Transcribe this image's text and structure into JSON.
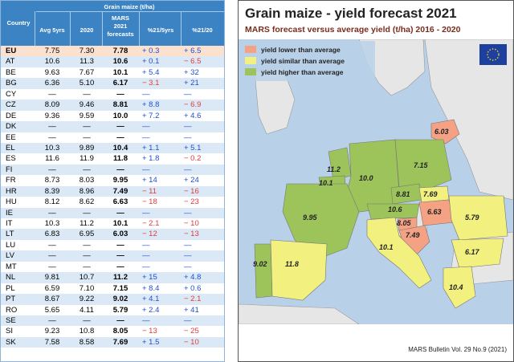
{
  "table": {
    "header": {
      "country": "Country",
      "group": "Grain maize (t/ha)",
      "avg": "Avg 5yrs",
      "y2020": "2020",
      "mars_line1": "MARS",
      "mars_line2": "2021",
      "mars_line3": "forecasts",
      "d5": "%21/5yrs",
      "d20": "%21/20"
    },
    "rows": [
      {
        "country": "EU",
        "avg": "7.75",
        "y2020": "7.30",
        "mars": "7.78",
        "d5": "+ 0.3",
        "d20": "+ 6.5"
      },
      {
        "country": "AT",
        "avg": "10.6",
        "y2020": "11.3",
        "mars": "10.6",
        "d5": "+ 0.1",
        "d20": "− 6.5"
      },
      {
        "country": "BE",
        "avg": "9.63",
        "y2020": "7.67",
        "mars": "10.1",
        "d5": "+ 5.4",
        "d20": "+ 32"
      },
      {
        "country": "BG",
        "avg": "6.36",
        "y2020": "5.10",
        "mars": "6.17",
        "d5": "− 3.1",
        "d20": "+ 21"
      },
      {
        "country": "CY",
        "avg": "—",
        "y2020": "—",
        "mars": "—",
        "d5": "—",
        "d20": "—"
      },
      {
        "country": "CZ",
        "avg": "8.09",
        "y2020": "9.46",
        "mars": "8.81",
        "d5": "+ 8.8",
        "d20": "− 6.9"
      },
      {
        "country": "DE",
        "avg": "9.36",
        "y2020": "9.59",
        "mars": "10.0",
        "d5": "+ 7.2",
        "d20": "+ 4.6"
      },
      {
        "country": "DK",
        "avg": "—",
        "y2020": "—",
        "mars": "—",
        "d5": "—",
        "d20": "—"
      },
      {
        "country": "EE",
        "avg": "—",
        "y2020": "—",
        "mars": "—",
        "d5": "—",
        "d20": "—"
      },
      {
        "country": "EL",
        "avg": "10.3",
        "y2020": "9.89",
        "mars": "10.4",
        "d5": "+ 1.1",
        "d20": "+ 5.1"
      },
      {
        "country": "ES",
        "avg": "11.6",
        "y2020": "11.9",
        "mars": "11.8",
        "d5": "+ 1.8",
        "d20": "− 0.2"
      },
      {
        "country": "FI",
        "avg": "—",
        "y2020": "—",
        "mars": "—",
        "d5": "—",
        "d20": "—"
      },
      {
        "country": "FR",
        "avg": "8.73",
        "y2020": "8.03",
        "mars": "9.95",
        "d5": "+ 14",
        "d20": "+ 24"
      },
      {
        "country": "HR",
        "avg": "8.39",
        "y2020": "8.96",
        "mars": "7.49",
        "d5": "− 11",
        "d20": "− 16"
      },
      {
        "country": "HU",
        "avg": "8.12",
        "y2020": "8.62",
        "mars": "6.63",
        "d5": "− 18",
        "d20": "− 23"
      },
      {
        "country": "IE",
        "avg": "—",
        "y2020": "—",
        "mars": "—",
        "d5": "—",
        "d20": "—"
      },
      {
        "country": "IT",
        "avg": "10.3",
        "y2020": "11.2",
        "mars": "10.1",
        "d5": "− 2.1",
        "d20": "− 10"
      },
      {
        "country": "LT",
        "avg": "6.83",
        "y2020": "6.95",
        "mars": "6.03",
        "d5": "− 12",
        "d20": "− 13"
      },
      {
        "country": "LU",
        "avg": "—",
        "y2020": "—",
        "mars": "—",
        "d5": "—",
        "d20": "—"
      },
      {
        "country": "LV",
        "avg": "—",
        "y2020": "—",
        "mars": "—",
        "d5": "—",
        "d20": "—"
      },
      {
        "country": "MT",
        "avg": "—",
        "y2020": "—",
        "mars": "—",
        "d5": "—",
        "d20": "—"
      },
      {
        "country": "NL",
        "avg": "9.81",
        "y2020": "10.7",
        "mars": "11.2",
        "d5": "+ 15",
        "d20": "+ 4.8"
      },
      {
        "country": "PL",
        "avg": "6.59",
        "y2020": "7.10",
        "mars": "7.15",
        "d5": "+ 8.4",
        "d20": "+ 0.6"
      },
      {
        "country": "PT",
        "avg": "8.67",
        "y2020": "9.22",
        "mars": "9.02",
        "d5": "+ 4.1",
        "d20": "− 2.1"
      },
      {
        "country": "RO",
        "avg": "5.65",
        "y2020": "4.11",
        "mars": "5.79",
        "d5": "+ 2.4",
        "d20": "+ 41"
      },
      {
        "country": "SE",
        "avg": "—",
        "y2020": "—",
        "mars": "—",
        "d5": "—",
        "d20": "—"
      },
      {
        "country": "SI",
        "avg": "9.23",
        "y2020": "10.8",
        "mars": "8.05",
        "d5": "− 13",
        "d20": "− 25"
      },
      {
        "country": "SK",
        "avg": "7.58",
        "y2020": "8.58",
        "mars": "7.69",
        "d5": "+ 1.5",
        "d20": "− 10"
      }
    ]
  },
  "map": {
    "title": "Grain maize - yield forecast 2021",
    "subtitle": "MARS forecast versus average yield (t/ha) 2016 - 2020",
    "legend": [
      {
        "label": "yield lower than average",
        "color": "#f4a184"
      },
      {
        "label": "yield similar than average",
        "color": "#f2f07e"
      },
      {
        "label": "yield higher than average",
        "color": "#9dc45a"
      }
    ],
    "values": {
      "LT": "6.03",
      "NL": "11.2",
      "BE": "10.1",
      "DE": "10.0",
      "PL": "7.15",
      "CZ": "8.81",
      "SK": "7.69",
      "AT": "10.6",
      "HU": "6.63",
      "SI": "8.05",
      "HR": "7.49",
      "FR": "9.95",
      "RO": "5.79",
      "BG": "6.17",
      "IT": "10.1",
      "EL": "10.4",
      "PT": "9.02",
      "ES": "11.8"
    },
    "footer": "MARS Bulletin Vol. 29 No.9 (2021)"
  },
  "colors": {
    "header_blue": "#3c83c4",
    "row_alt": "#dbe9f6",
    "eu_row": "#fde1cf",
    "positive": "#1f4fd1",
    "negative": "#e23b3b",
    "sea": "#b8d1e8",
    "land_grey": "#e6e6e6"
  }
}
